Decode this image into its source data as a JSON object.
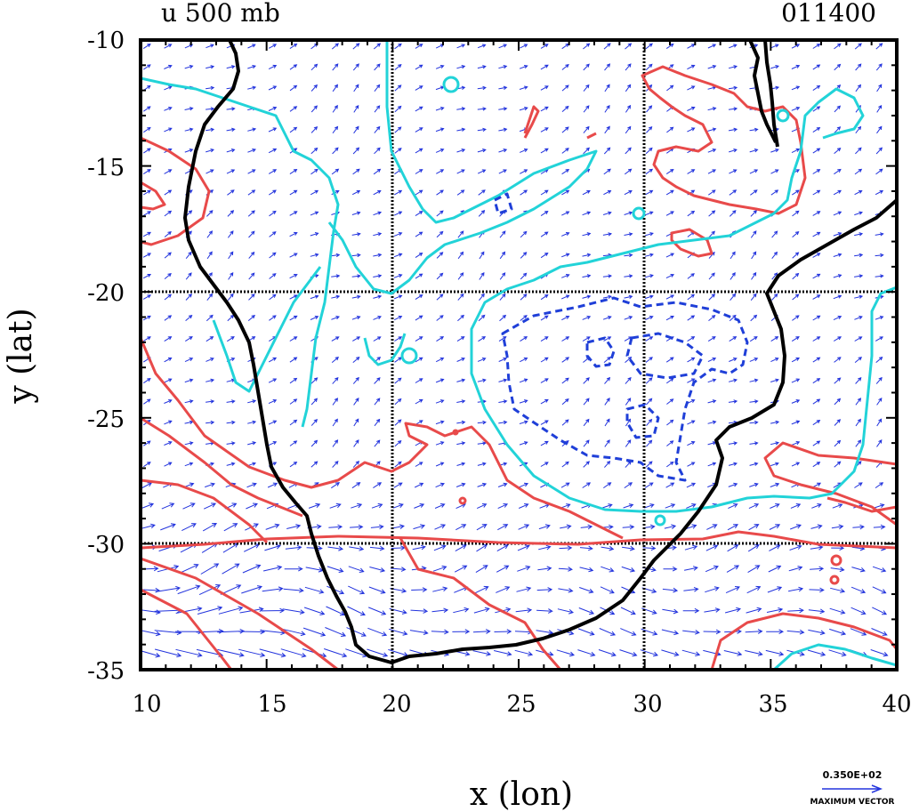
{
  "chart_data": {
    "type": "map",
    "title": "u 500 mb",
    "timestamp": "011400",
    "xlabel": "x (lon)",
    "ylabel": "y (lat)",
    "xlim": [
      10,
      40
    ],
    "ylim": [
      -35,
      -10
    ],
    "x_ticks": [
      "10",
      "15",
      "20",
      "25",
      "30",
      "35",
      "40"
    ],
    "y_ticks": [
      "-10",
      "-15",
      "-20",
      "-25",
      "-30",
      "-35"
    ],
    "grid_lines": {
      "lon": [
        20,
        30
      ],
      "lat": [
        -20,
        -30
      ]
    },
    "vector_legend": {
      "value": "0.350E+02",
      "label": "MAXIMUM VECTOR"
    },
    "colors": {
      "positive_contour": "#e84a4a",
      "zero_contour": "#22d3d8",
      "negative_contour": "#1f3fd8",
      "vectors": "#2233dd",
      "coastline": "#000000"
    }
  }
}
